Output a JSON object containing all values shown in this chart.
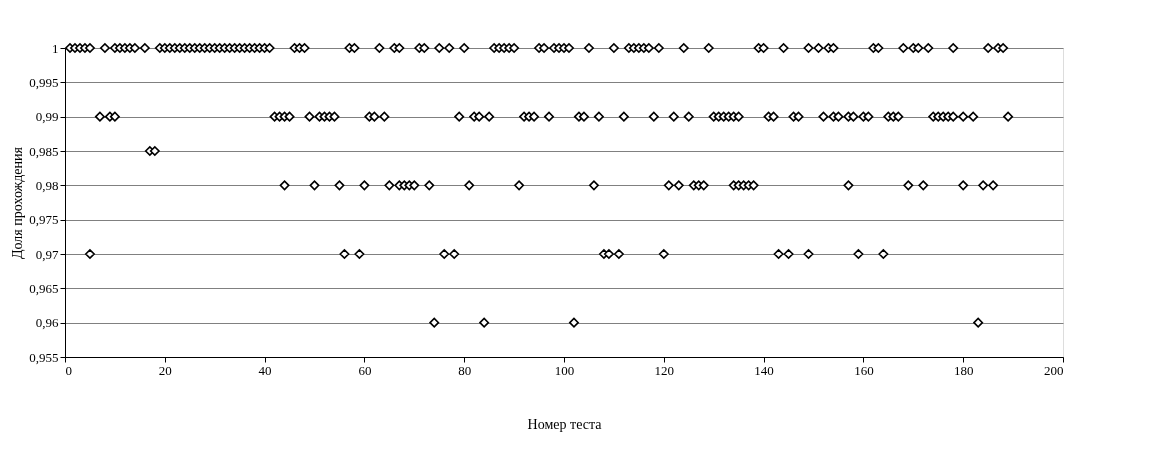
{
  "chart_data": {
    "type": "scatter",
    "xlabel": "Номер теста",
    "ylabel": "Доля прохождения",
    "marker": "diamond",
    "grid": "y",
    "xlim": [
      0,
      200
    ],
    "xticks": [
      0,
      20,
      40,
      60,
      80,
      100,
      120,
      140,
      160,
      180,
      200
    ],
    "ylim": [
      0.955,
      1.0
    ],
    "yticks": [
      {
        "value": 0.955,
        "label": "0,955"
      },
      {
        "value": 0.96,
        "label": "0,96"
      },
      {
        "value": 0.965,
        "label": "0,965"
      },
      {
        "value": 0.97,
        "label": "0,97"
      },
      {
        "value": 0.975,
        "label": "0,975"
      },
      {
        "value": 0.98,
        "label": "0,98"
      },
      {
        "value": 0.985,
        "label": "0,985"
      },
      {
        "value": 0.99,
        "label": "0,99"
      },
      {
        "value": 0.995,
        "label": "0,995"
      },
      {
        "value": 1.0,
        "label": "1"
      }
    ],
    "series": [
      {
        "color": "#000000",
        "x": [
          1,
          2,
          3,
          4,
          5,
          8,
          10,
          11,
          12,
          13,
          14,
          16,
          19,
          20,
          21,
          22,
          23,
          24,
          25,
          26,
          27,
          28,
          29,
          30,
          31,
          32,
          33,
          34,
          35,
          36,
          37,
          38,
          39,
          40,
          41,
          46,
          47,
          48,
          57,
          58,
          63,
          66,
          67,
          71,
          72,
          75,
          77,
          80,
          86,
          87,
          88,
          89,
          90,
          95,
          96,
          98,
          99,
          100,
          101,
          105,
          110,
          113,
          114,
          115,
          116,
          117,
          119,
          124,
          129,
          139,
          140,
          144,
          149,
          151,
          153,
          154,
          162,
          163,
          168,
          170,
          171,
          173,
          178,
          185,
          187,
          188,
          7,
          9,
          10,
          42,
          43,
          44,
          45,
          49,
          51,
          52,
          53,
          54,
          61,
          62,
          64,
          79,
          82,
          83,
          85,
          92,
          93,
          94,
          97,
          103,
          104,
          107,
          112,
          118,
          122,
          125,
          130,
          131,
          132,
          133,
          134,
          135,
          141,
          142,
          146,
          147,
          152,
          154,
          155,
          157,
          158,
          160,
          161,
          165,
          166,
          167,
          174,
          175,
          176,
          177,
          178,
          180,
          182,
          189,
          17,
          18,
          44,
          50,
          55,
          60,
          65,
          67,
          68,
          69,
          70,
          73,
          81,
          91,
          106,
          121,
          123,
          126,
          127,
          128,
          134,
          135,
          136,
          137,
          138,
          157,
          169,
          172,
          180,
          184,
          186,
          5,
          56,
          59,
          76,
          78,
          108,
          109,
          111,
          120,
          143,
          145,
          149,
          159,
          164,
          74,
          84,
          102,
          183
        ],
        "values": [
          1,
          1,
          1,
          1,
          1,
          1,
          1,
          1,
          1,
          1,
          1,
          1,
          1,
          1,
          1,
          1,
          1,
          1,
          1,
          1,
          1,
          1,
          1,
          1,
          1,
          1,
          1,
          1,
          1,
          1,
          1,
          1,
          1,
          1,
          1,
          1,
          1,
          1,
          1,
          1,
          1,
          1,
          1,
          1,
          1,
          1,
          1,
          1,
          1,
          1,
          1,
          1,
          1,
          1,
          1,
          1,
          1,
          1,
          1,
          1,
          1,
          1,
          1,
          1,
          1,
          1,
          1,
          1,
          1,
          1,
          1,
          1,
          1,
          1,
          1,
          1,
          1,
          1,
          1,
          1,
          1,
          1,
          1,
          1,
          1,
          1,
          0.99,
          0.99,
          0.99,
          0.99,
          0.99,
          0.99,
          0.99,
          0.99,
          0.99,
          0.99,
          0.99,
          0.99,
          0.99,
          0.99,
          0.99,
          0.99,
          0.99,
          0.99,
          0.99,
          0.99,
          0.99,
          0.99,
          0.99,
          0.99,
          0.99,
          0.99,
          0.99,
          0.99,
          0.99,
          0.99,
          0.99,
          0.99,
          0.99,
          0.99,
          0.99,
          0.99,
          0.99,
          0.99,
          0.99,
          0.99,
          0.99,
          0.99,
          0.99,
          0.99,
          0.99,
          0.99,
          0.99,
          0.99,
          0.99,
          0.99,
          0.99,
          0.99,
          0.99,
          0.99,
          0.99,
          0.99,
          0.99,
          0.99,
          0.985,
          0.985,
          0.98,
          0.98,
          0.98,
          0.98,
          0.98,
          0.98,
          0.98,
          0.98,
          0.98,
          0.98,
          0.98,
          0.98,
          0.98,
          0.98,
          0.98,
          0.98,
          0.98,
          0.98,
          0.98,
          0.98,
          0.98,
          0.98,
          0.98,
          0.98,
          0.98,
          0.98,
          0.98,
          0.98,
          0.98,
          0.97,
          0.97,
          0.97,
          0.97,
          0.97,
          0.97,
          0.97,
          0.97,
          0.97,
          0.97,
          0.97,
          0.97,
          0.97,
          0.97,
          0.96,
          0.96,
          0.96,
          0.96
        ]
      }
    ]
  }
}
